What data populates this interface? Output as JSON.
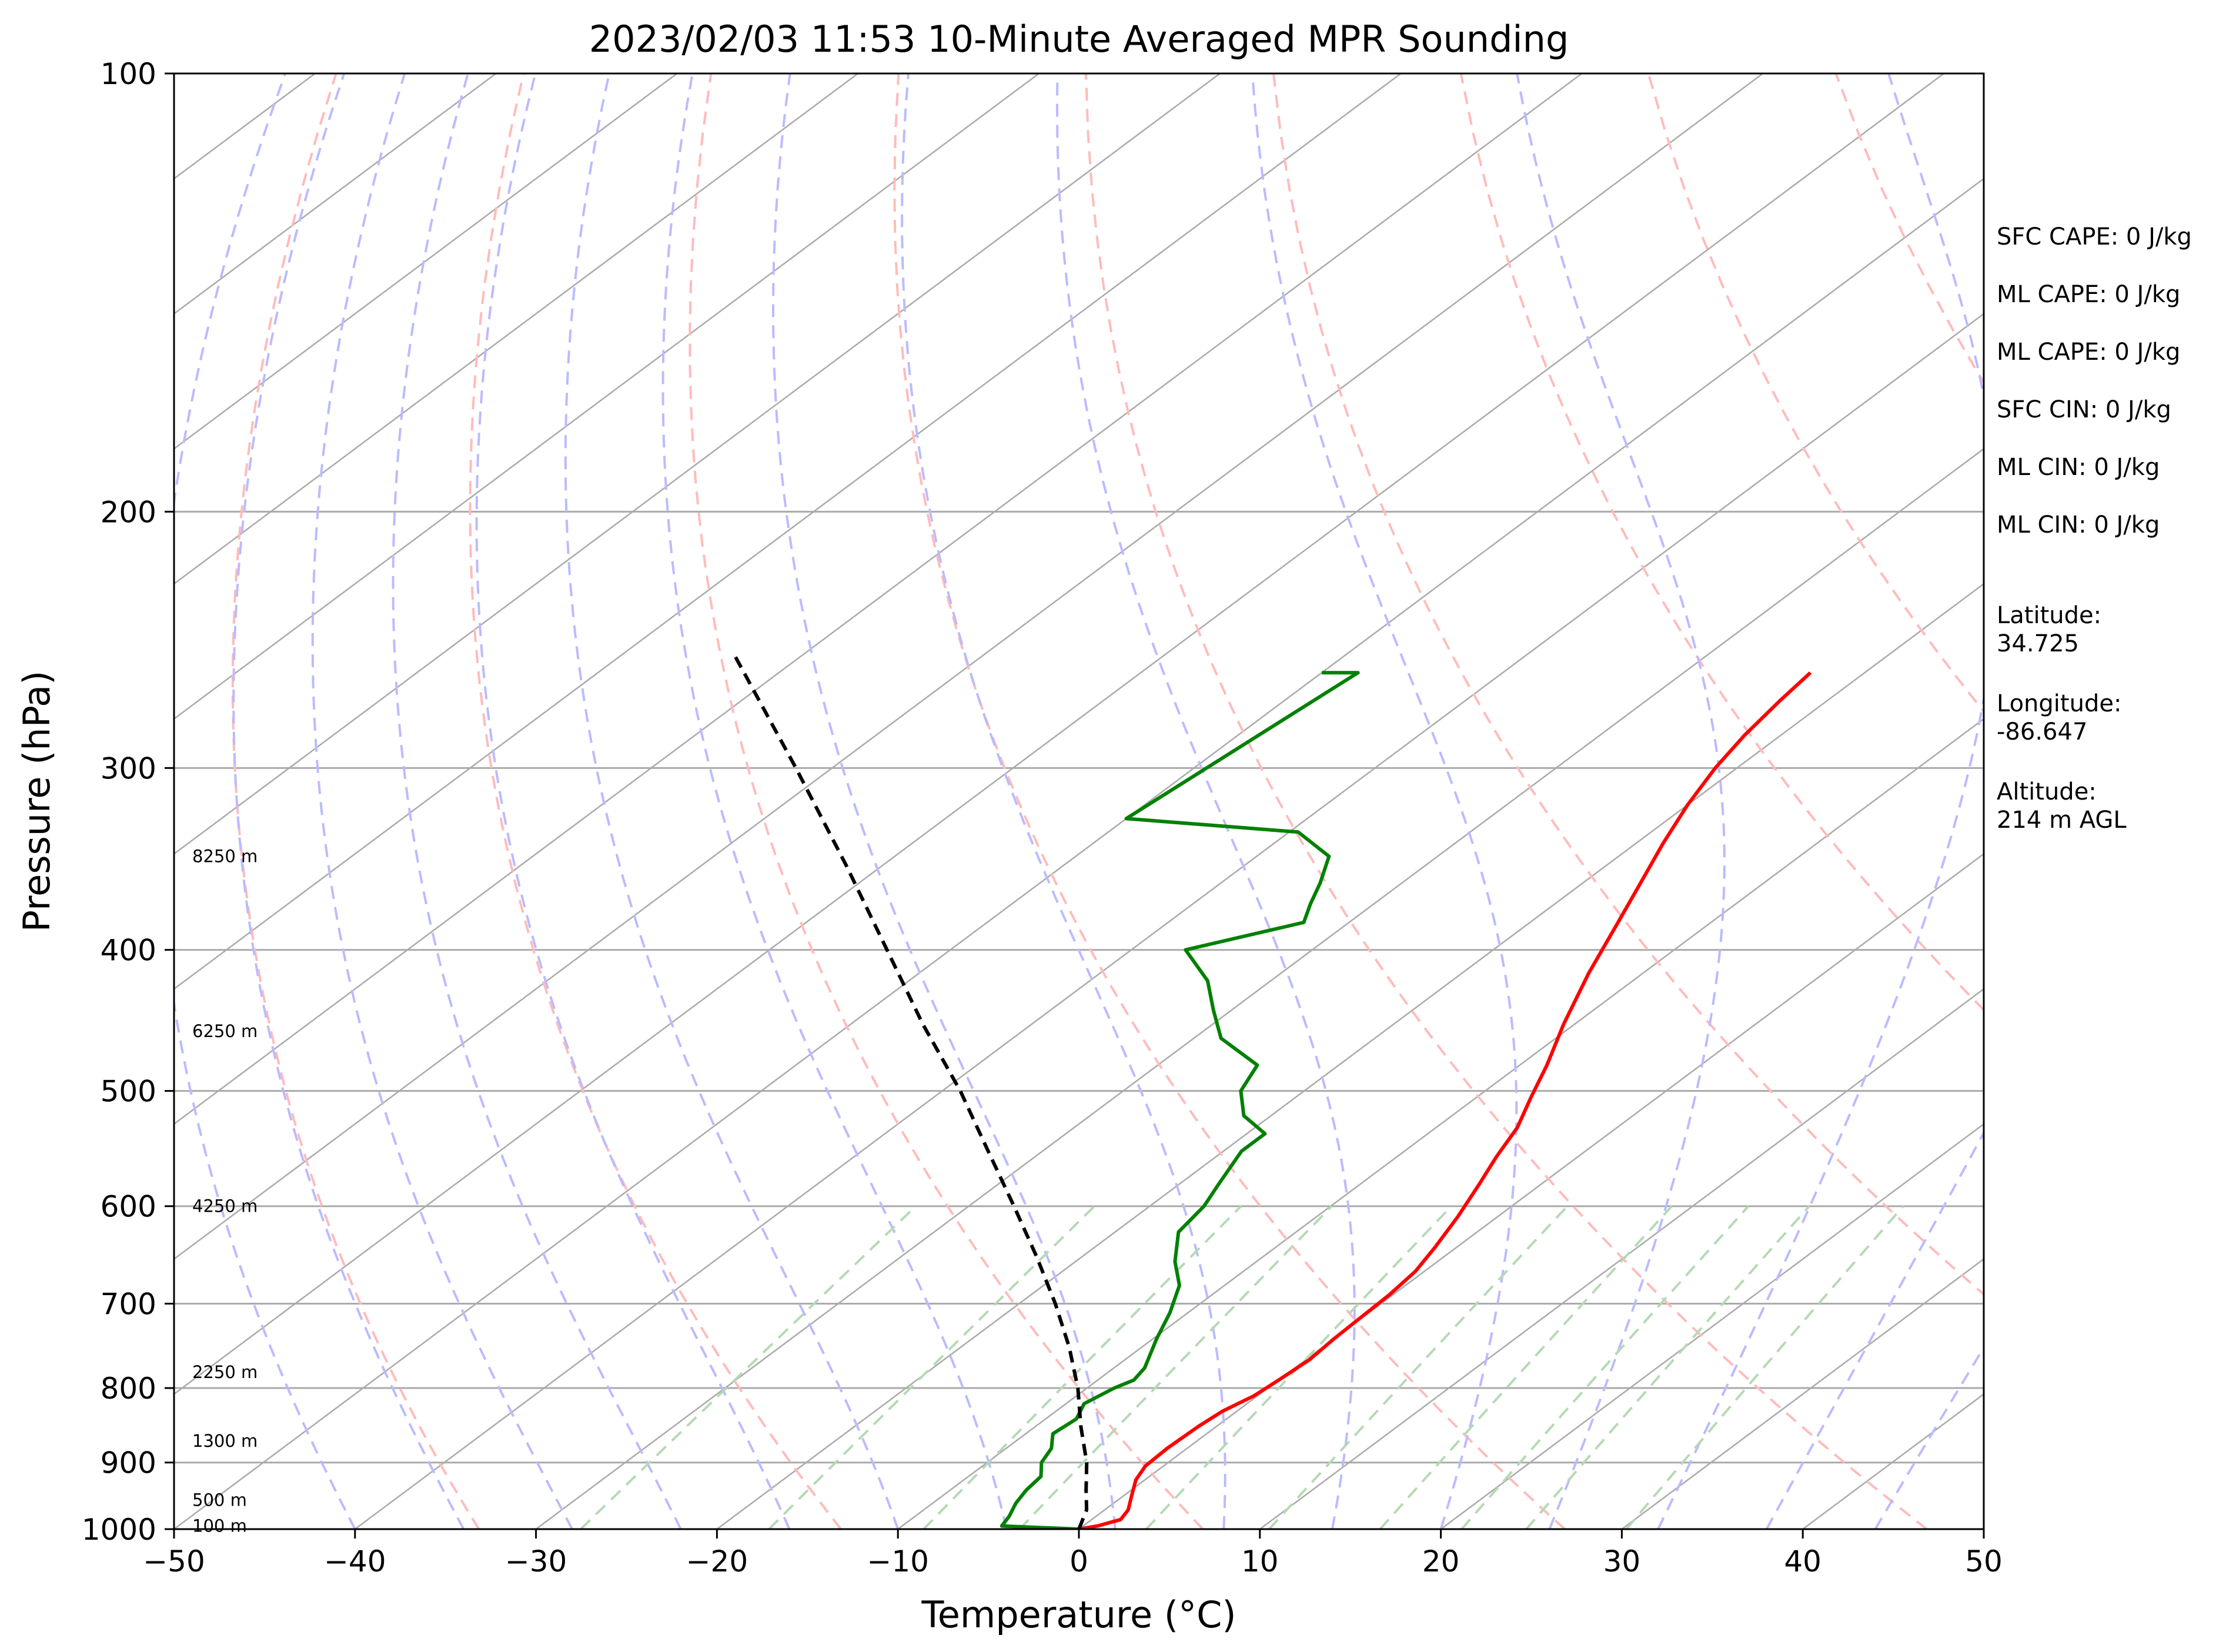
{
  "chart_data": {
    "type": "line",
    "title": "2023/02/03 11:53 10-Minute Averaged MPR Sounding",
    "xlabel": "Temperature (°C)",
    "ylabel": "Pressure (hPa)",
    "xlim": [
      -50,
      50
    ],
    "ylim": [
      1000,
      100
    ],
    "y_scale": "log",
    "x_ticks": [
      "−50",
      "−40",
      "−30",
      "−20",
      "−10",
      "0",
      "10",
      "20",
      "30",
      "40",
      "50"
    ],
    "y_ticks": [
      "100",
      "200",
      "300",
      "400",
      "500",
      "600",
      "700",
      "800",
      "900",
      "1000"
    ],
    "grid": true,
    "skew": "skew-T log-P",
    "series": [
      {
        "role": "temperature",
        "color": "#ff0000",
        "points": [
          [
            -23.0,
            258
          ],
          [
            -22.6,
            270
          ],
          [
            -22.0,
            285
          ],
          [
            -21.2,
            300
          ],
          [
            -20.0,
            318
          ],
          [
            -18.5,
            338
          ],
          [
            -16.8,
            360
          ],
          [
            -15.0,
            385
          ],
          [
            -13.0,
            415
          ],
          [
            -10.6,
            450
          ],
          [
            -8.5,
            480
          ],
          [
            -7.0,
            505
          ],
          [
            -5.5,
            530
          ],
          [
            -4.5,
            555
          ],
          [
            -3.4,
            580
          ],
          [
            -2.2,
            610
          ],
          [
            -1.2,
            640
          ],
          [
            -0.5,
            665
          ],
          [
            -0.2,
            690
          ],
          [
            -0.1,
            715
          ],
          [
            0.0,
            740
          ],
          [
            0.2,
            765
          ],
          [
            0.0,
            790
          ],
          [
            -0.2,
            810
          ],
          [
            -0.8,
            830
          ],
          [
            -1.0,
            850
          ],
          [
            -1.1,
            880
          ],
          [
            -1.0,
            905
          ],
          [
            -0.5,
            925
          ],
          [
            0.5,
            950
          ],
          [
            1.3,
            970
          ],
          [
            1.6,
            985
          ],
          [
            0.8,
            995
          ],
          [
            0.0,
            1000
          ]
        ]
      },
      {
        "role": "dewpoint",
        "color": "#008000",
        "points": [
          [
            -50.0,
            258
          ],
          [
            -48.0,
            258
          ],
          [
            -50.0,
            325
          ],
          [
            -39.5,
            332
          ],
          [
            -36.0,
            345
          ],
          [
            -34.5,
            360
          ],
          [
            -33.5,
            372
          ],
          [
            -32.5,
            383
          ],
          [
            -37.0,
            400
          ],
          [
            -33.5,
            420
          ],
          [
            -31.0,
            440
          ],
          [
            -28.5,
            460
          ],
          [
            -24.5,
            480
          ],
          [
            -23.5,
            500
          ],
          [
            -21.5,
            520
          ],
          [
            -19.0,
            535
          ],
          [
            -19.0,
            550
          ],
          [
            -17.8,
            580
          ],
          [
            -17.0,
            600
          ],
          [
            -16.5,
            625
          ],
          [
            -14.5,
            655
          ],
          [
            -12.5,
            680
          ],
          [
            -11.0,
            710
          ],
          [
            -9.8,
            740
          ],
          [
            -8.3,
            775
          ],
          [
            -8.0,
            790
          ],
          [
            -8.5,
            800
          ],
          [
            -9.0,
            820
          ],
          [
            -8.3,
            840
          ],
          [
            -8.5,
            860
          ],
          [
            -7.5,
            880
          ],
          [
            -7.0,
            900
          ],
          [
            -6.0,
            920
          ],
          [
            -5.8,
            940
          ],
          [
            -5.4,
            960
          ],
          [
            -4.8,
            980
          ],
          [
            -4.5,
            995
          ],
          [
            0.0,
            1000
          ]
        ]
      },
      {
        "role": "parcel profile",
        "color": "#000000",
        "points": [
          [
            0.0,
            1000
          ],
          [
            -1.0,
            970
          ],
          [
            -2.5,
            940
          ],
          [
            -4.5,
            900
          ],
          [
            -7.5,
            850
          ],
          [
            -10.5,
            800
          ],
          [
            -14.0,
            750
          ],
          [
            -18.0,
            700
          ],
          [
            -22.5,
            650
          ],
          [
            -27.5,
            600
          ],
          [
            -33.0,
            550
          ],
          [
            -39.0,
            500
          ],
          [
            -46.0,
            450
          ],
          [
            -53.5,
            400
          ],
          [
            -62.0,
            350
          ],
          [
            -72.0,
            300
          ],
          [
            -84.0,
            250
          ]
        ]
      }
    ],
    "height_labels": [
      {
        "text": "8250 m",
        "pressure": 345
      },
      {
        "text": "6250 m",
        "pressure": 455
      },
      {
        "text": "4250 m",
        "pressure": 600
      },
      {
        "text": "2250 m",
        "pressure": 780
      },
      {
        "text": "1300 m",
        "pressure": 870
      },
      {
        "text": "500 m",
        "pressure": 955
      },
      {
        "text": "100 m",
        "pressure": 995
      }
    ],
    "annotations": [
      "SFC CAPE: 0 J/kg",
      "ML CAPE: 0 J/kg",
      "ML CAPE: 0 J/kg",
      "SFC CIN: 0 J/kg",
      "ML CIN: 0 J/kg",
      "ML CIN: 0 J/kg"
    ],
    "site_info": [
      {
        "label": "Latitude:",
        "value": "34.725"
      },
      {
        "label": "Longitude:",
        "value": "-86.647"
      },
      {
        "label": "Altitude:",
        "value": "214 m AGL"
      }
    ],
    "background_lines": {
      "isotherm_color": "#aaaaaa",
      "dry_adiabat_color": "#ffbbbb",
      "moist_adiabat_color": "#bbbbff",
      "mixing_ratio_color": "#b5d9b5"
    }
  }
}
